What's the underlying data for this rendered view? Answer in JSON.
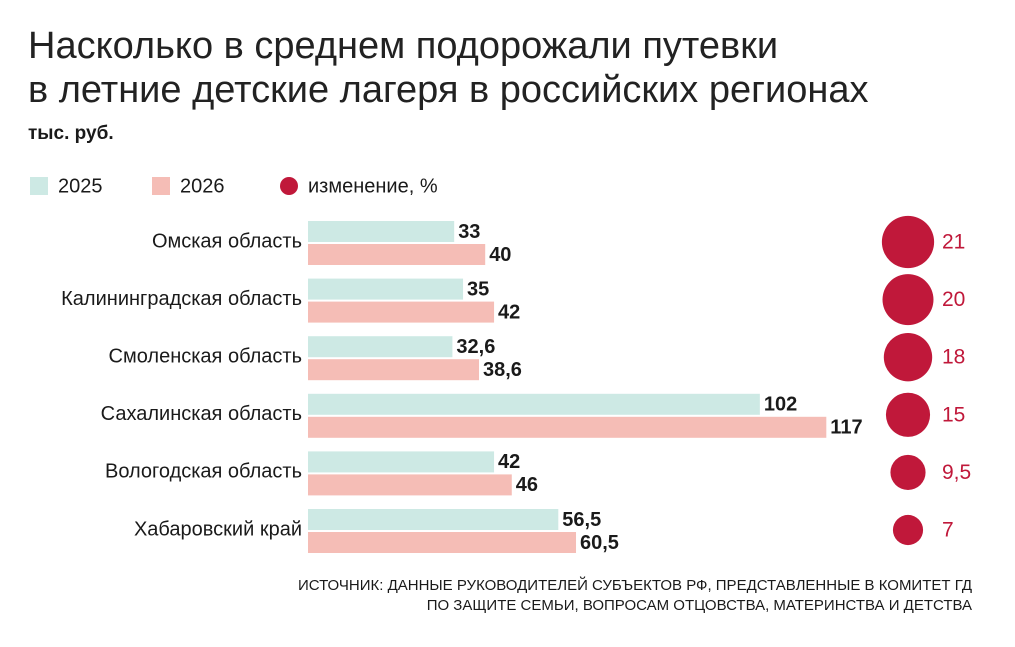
{
  "chart_data": {
    "type": "bar",
    "orientation": "horizontal",
    "title": [
      "Насколько в среднем подорожали путевки",
      "в летние детские лагеря в российских регионах"
    ],
    "subtitle": "тыс. руб.",
    "categories": [
      "Омская область",
      "Калининградская область",
      "Смоленская область",
      "Сахалинская область",
      "Вологодская область",
      "Хабаровский край"
    ],
    "series": [
      {
        "name": "2025",
        "color": "#cde9e4",
        "values": [
          33,
          35,
          32.6,
          102,
          42,
          56.5
        ],
        "value_labels": [
          "33",
          "35",
          "32,6",
          "102",
          "42",
          "56,5"
        ]
      },
      {
        "name": "2026",
        "color": "#f5bdb6",
        "values": [
          40,
          42,
          38.6,
          117,
          46,
          60.5
        ],
        "value_labels": [
          "40",
          "42",
          "38,6",
          "117",
          "46",
          "60,5"
        ]
      },
      {
        "name": "изменение, %",
        "color": "#c0183a",
        "marker": "circle",
        "values": [
          21,
          20,
          18,
          15,
          9.5,
          7
        ],
        "value_labels": [
          "21",
          "20",
          "18",
          "15",
          "9,5",
          "7"
        ]
      }
    ],
    "source": [
      "ИСТОЧНИК: ДАННЫЕ РУКОВОДИТЕЛЕЙ СУБЪЕКТОВ РФ, ПРЕДСТАВЛЕННЫЕ В КОМИТЕТ ГД",
      "ПО ЗАЩИТЕ СЕМЬИ, ВОПРОСАМ ОТЦОВСТВА, МАТЕРИНСТВА И ДЕТСТВА"
    ]
  }
}
